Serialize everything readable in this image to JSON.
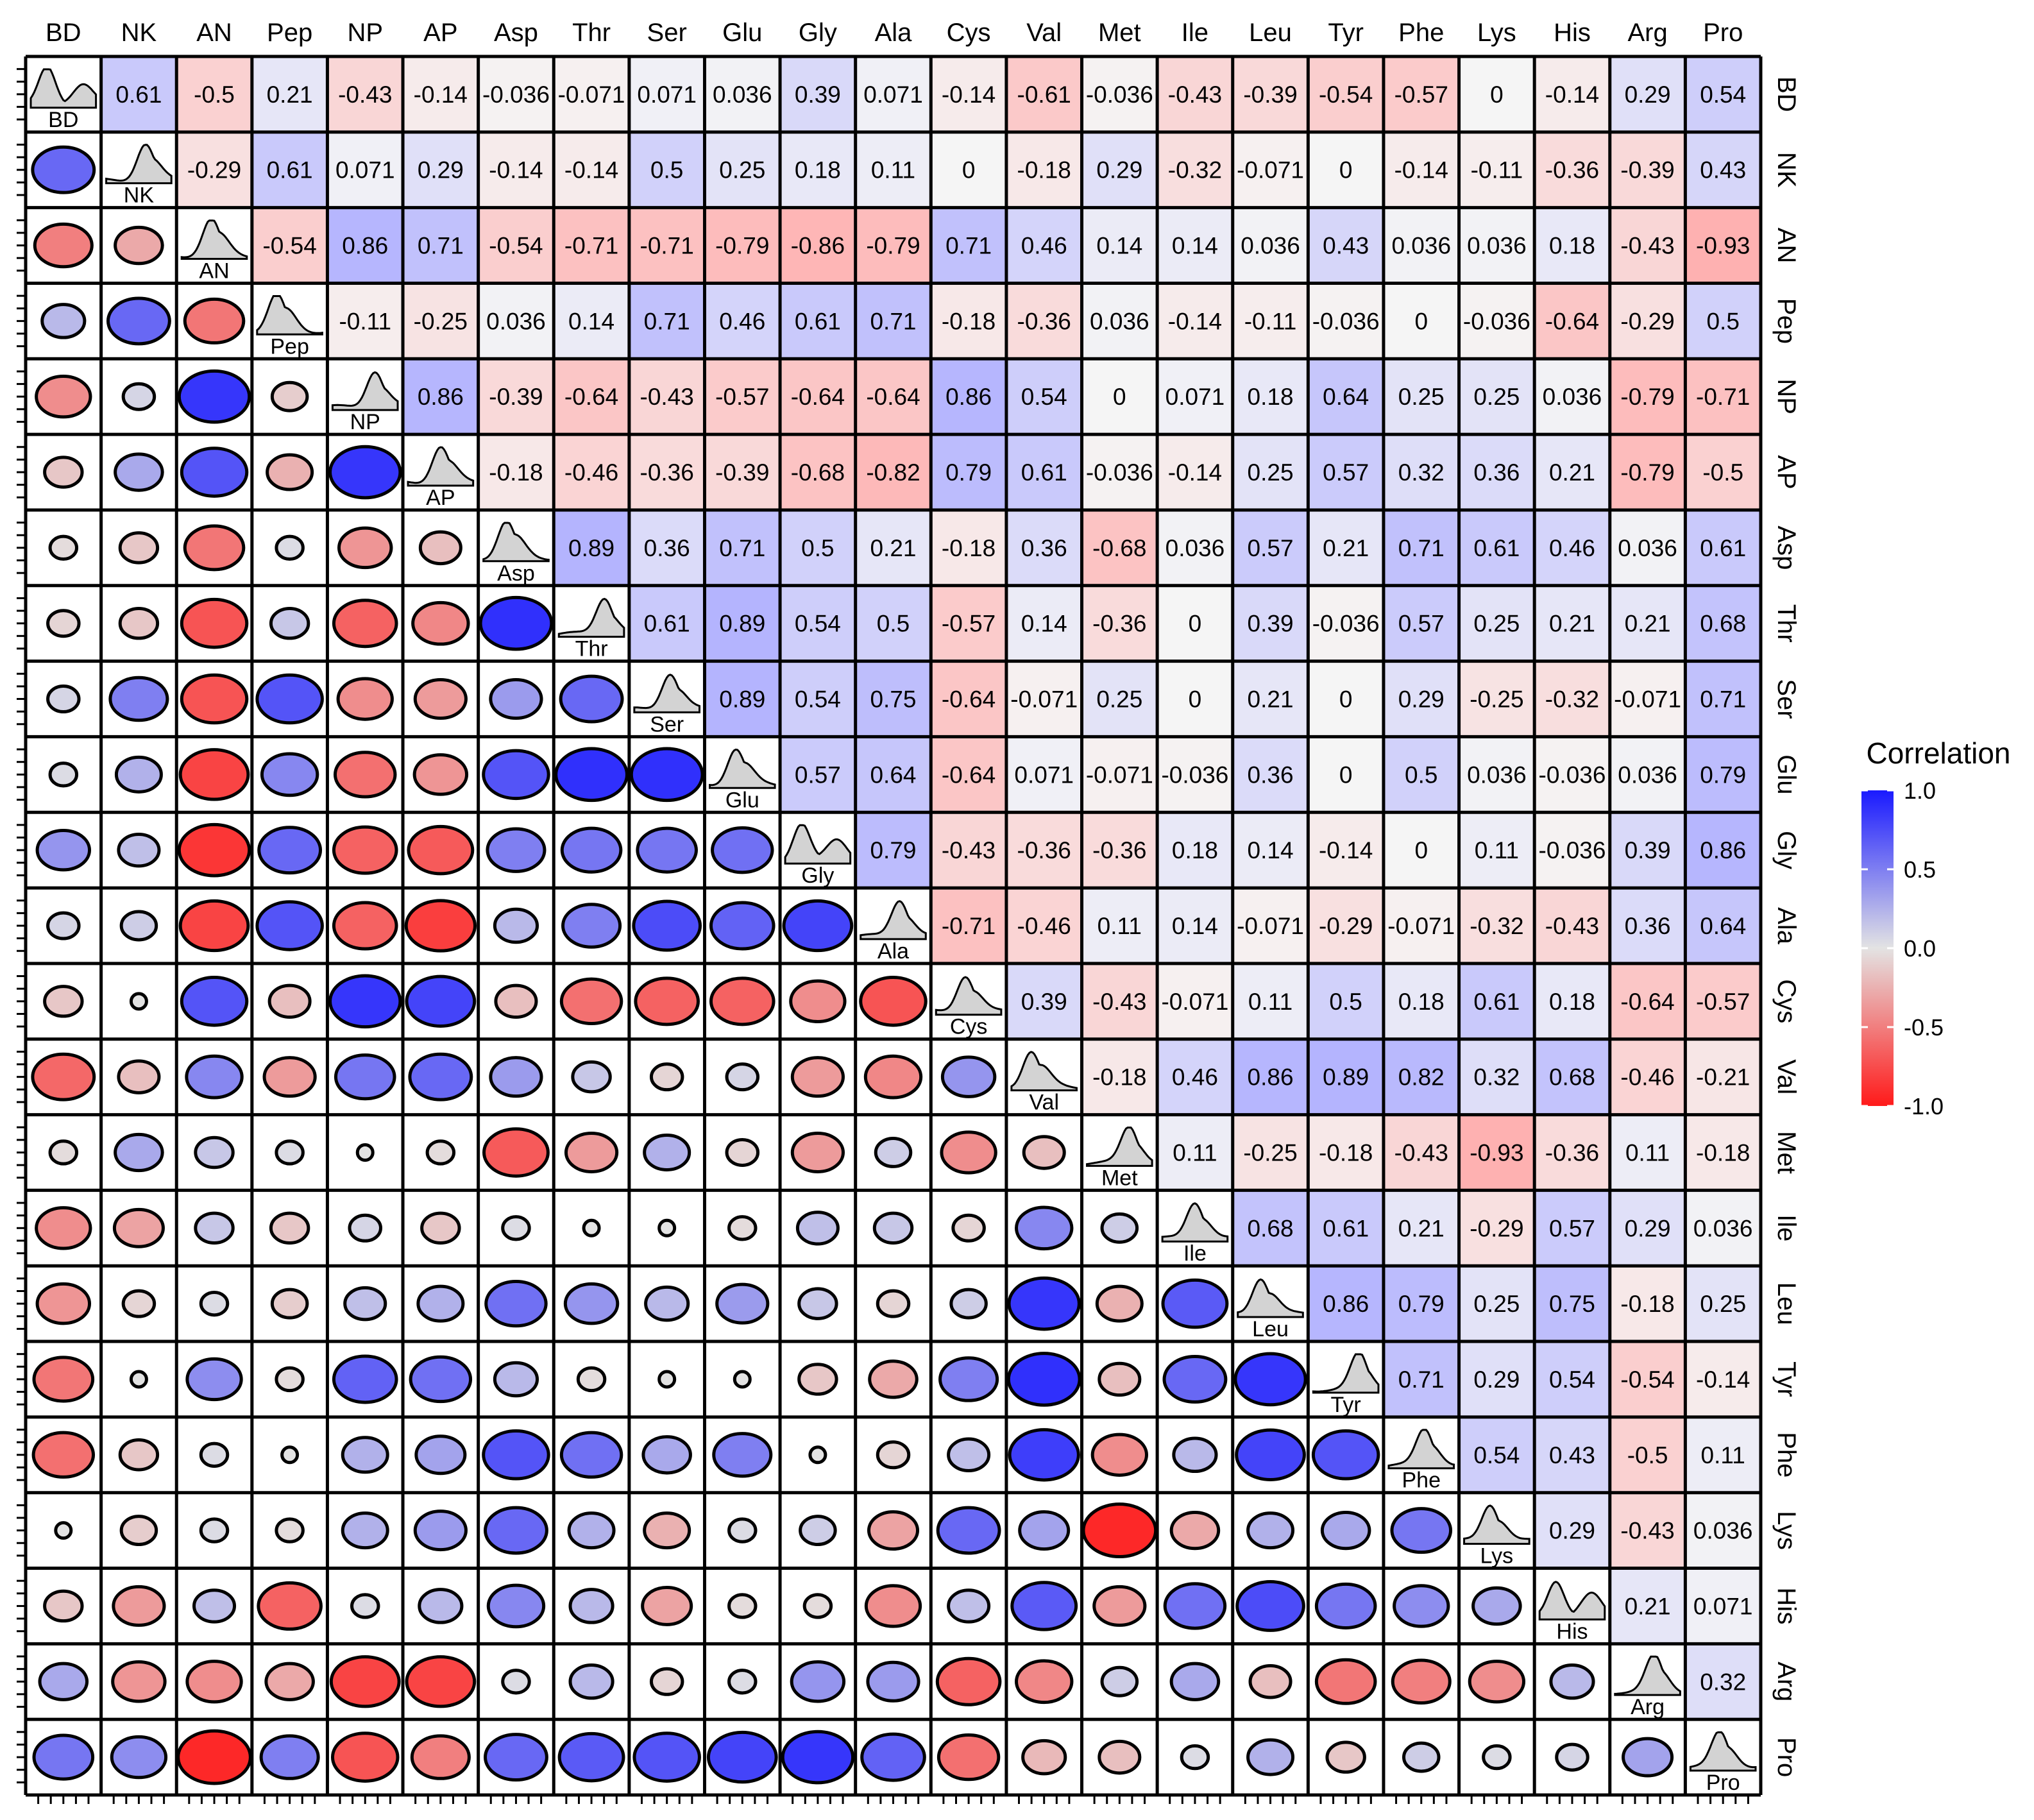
{
  "chart_data": {
    "type": "heatmap",
    "variables": [
      "BD",
      "NK",
      "AN",
      "Pep",
      "NP",
      "AP",
      "Asp",
      "Thr",
      "Ser",
      "Glu",
      "Gly",
      "Ala",
      "Cys",
      "Val",
      "Met",
      "Ile",
      "Leu",
      "Tyr",
      "Phe",
      "Lys",
      "His",
      "Arg",
      "Pro"
    ],
    "upper_labels": [
      [
        "",
        "0.61",
        "-0.5",
        "0.21",
        "-0.43",
        "-0.14",
        "-0.036",
        "-0.071",
        "0.071",
        "0.036",
        "0.39",
        "0.071",
        "-0.14",
        "-0.61",
        "-0.036",
        "-0.43",
        "-0.39",
        "-0.54",
        "-0.57",
        "0",
        "-0.14",
        "0.29",
        "0.54"
      ],
      [
        "",
        "",
        "-0.29",
        "0.61",
        "0.071",
        "0.29",
        "-0.14",
        "-0.14",
        "0.5",
        "0.25",
        "0.18",
        "0.11",
        "0",
        "-0.18",
        "0.29",
        "-0.32",
        "-0.071",
        "0",
        "-0.14",
        "-0.11",
        "-0.36",
        "-0.39",
        "0.43"
      ],
      [
        "",
        "",
        "",
        "-0.54",
        "0.86",
        "0.71",
        "-0.54",
        "-0.71",
        "-0.71",
        "-0.79",
        "-0.86",
        "-0.79",
        "0.71",
        "0.46",
        "0.14",
        "0.14",
        "0.036",
        "0.43",
        "0.036",
        "0.036",
        "0.18",
        "-0.43",
        "-0.93"
      ],
      [
        "",
        "",
        "",
        "",
        "-0.11",
        "-0.25",
        "0.036",
        "0.14",
        "0.71",
        "0.46",
        "0.61",
        "0.71",
        "-0.18",
        "-0.36",
        "0.036",
        "-0.14",
        "-0.11",
        "-0.036",
        "0",
        "-0.036",
        "-0.64",
        "-0.29",
        "0.5"
      ],
      [
        "",
        "",
        "",
        "",
        "",
        "0.86",
        "-0.39",
        "-0.64",
        "-0.43",
        "-0.57",
        "-0.64",
        "-0.64",
        "0.86",
        "0.54",
        "0",
        "0.071",
        "0.18",
        "0.64",
        "0.25",
        "0.25",
        "0.036",
        "-0.79",
        "-0.71"
      ],
      [
        "",
        "",
        "",
        "",
        "",
        "",
        "-0.18",
        "-0.46",
        "-0.36",
        "-0.39",
        "-0.68",
        "-0.82",
        "0.79",
        "0.61",
        "-0.036",
        "-0.14",
        "0.25",
        "0.57",
        "0.32",
        "0.36",
        "0.21",
        "-0.79",
        "-0.5"
      ],
      [
        "",
        "",
        "",
        "",
        "",
        "",
        "",
        "0.89",
        "0.36",
        "0.71",
        "0.5",
        "0.21",
        "-0.18",
        "0.36",
        "-0.68",
        "0.036",
        "0.57",
        "0.21",
        "0.71",
        "0.61",
        "0.46",
        "0.036",
        "0.61"
      ],
      [
        "",
        "",
        "",
        "",
        "",
        "",
        "",
        "",
        "0.61",
        "0.89",
        "0.54",
        "0.5",
        "-0.57",
        "0.14",
        "-0.36",
        "0",
        "0.39",
        "-0.036",
        "0.57",
        "0.25",
        "0.21",
        "0.21",
        "0.68"
      ],
      [
        "",
        "",
        "",
        "",
        "",
        "",
        "",
        "",
        "",
        "0.89",
        "0.54",
        "0.75",
        "-0.64",
        "-0.071",
        "0.25",
        "0",
        "0.21",
        "0",
        "0.29",
        "-0.25",
        "-0.32",
        "-0.071",
        "0.71"
      ],
      [
        "",
        "",
        "",
        "",
        "",
        "",
        "",
        "",
        "",
        "",
        "0.57",
        "0.64",
        "-0.64",
        "0.071",
        "-0.071",
        "-0.036",
        "0.36",
        "0",
        "0.5",
        "0.036",
        "-0.036",
        "0.036",
        "0.79"
      ],
      [
        "",
        "",
        "",
        "",
        "",
        "",
        "",
        "",
        "",
        "",
        "",
        "0.79",
        "-0.43",
        "-0.36",
        "-0.36",
        "0.18",
        "0.14",
        "-0.14",
        "0",
        "0.11",
        "-0.036",
        "0.39",
        "0.86"
      ],
      [
        "",
        "",
        "",
        "",
        "",
        "",
        "",
        "",
        "",
        "",
        "",
        "",
        "-0.71",
        "-0.46",
        "0.11",
        "0.14",
        "-0.071",
        "-0.29",
        "-0.071",
        "-0.32",
        "-0.43",
        "0.36",
        "0.64"
      ],
      [
        "",
        "",
        "",
        "",
        "",
        "",
        "",
        "",
        "",
        "",
        "",
        "",
        "",
        "0.39",
        "-0.43",
        "-0.071",
        "0.11",
        "0.5",
        "0.18",
        "0.61",
        "0.18",
        "-0.64",
        "-0.57"
      ],
      [
        "",
        "",
        "",
        "",
        "",
        "",
        "",
        "",
        "",
        "",
        "",
        "",
        "",
        "",
        "-0.18",
        "0.46",
        "0.86",
        "0.89",
        "0.82",
        "0.32",
        "0.68",
        "-0.46",
        "-0.21"
      ],
      [
        "",
        "",
        "",
        "",
        "",
        "",
        "",
        "",
        "",
        "",
        "",
        "",
        "",
        "",
        "",
        "0.11",
        "-0.25",
        "-0.18",
        "-0.43",
        "-0.93",
        "-0.36",
        "0.11",
        "-0.18"
      ],
      [
        "",
        "",
        "",
        "",
        "",
        "",
        "",
        "",
        "",
        "",
        "",
        "",
        "",
        "",
        "",
        "",
        "0.68",
        "0.61",
        "0.21",
        "-0.29",
        "0.57",
        "0.29",
        "0.036"
      ],
      [
        "",
        "",
        "",
        "",
        "",
        "",
        "",
        "",
        "",
        "",
        "",
        "",
        "",
        "",
        "",
        "",
        "",
        "0.86",
        "0.79",
        "0.25",
        "0.75",
        "-0.18",
        "0.25"
      ],
      [
        "",
        "",
        "",
        "",
        "",
        "",
        "",
        "",
        "",
        "",
        "",
        "",
        "",
        "",
        "",
        "",
        "",
        "",
        "0.71",
        "0.29",
        "0.54",
        "-0.54",
        "-0.14"
      ],
      [
        "",
        "",
        "",
        "",
        "",
        "",
        "",
        "",
        "",
        "",
        "",
        "",
        "",
        "",
        "",
        "",
        "",
        "",
        "",
        "0.54",
        "0.43",
        "-0.5",
        "0.11"
      ],
      [
        "",
        "",
        "",
        "",
        "",
        "",
        "",
        "",
        "",
        "",
        "",
        "",
        "",
        "",
        "",
        "",
        "",
        "",
        "",
        "",
        "0.29",
        "-0.43",
        "0.036"
      ],
      [
        "",
        "",
        "",
        "",
        "",
        "",
        "",
        "",
        "",
        "",
        "",
        "",
        "",
        "",
        "",
        "",
        "",
        "",
        "",
        "",
        "",
        "0.21",
        "0.071"
      ],
      [
        "",
        "",
        "",
        "",
        "",
        "",
        "",
        "",
        "",
        "",
        "",
        "",
        "",
        "",
        "",
        "",
        "",
        "",
        "",
        "",
        "",
        "",
        "0.32"
      ],
      [
        "",
        "",
        "",
        "",
        "",
        "",
        "",
        "",
        "",
        "",
        "",
        "",
        "",
        "",
        "",
        "",
        "",
        "",
        "",
        "",
        "",
        "",
        ""
      ]
    ],
    "legend": {
      "title": "Correlation",
      "ticks": [
        "1.0",
        "0.5",
        "0.0",
        "-0.5",
        "-1.0"
      ],
      "tick_values": [
        1,
        0.5,
        0,
        -0.5,
        -1
      ],
      "range": [
        -1,
        1
      ],
      "placement": "right"
    },
    "colors": {
      "positive": "#1a1aff",
      "neutral": "#e3e3e3",
      "negative": "#ff1a1a",
      "density_fill": "#d3d3d3"
    }
  }
}
